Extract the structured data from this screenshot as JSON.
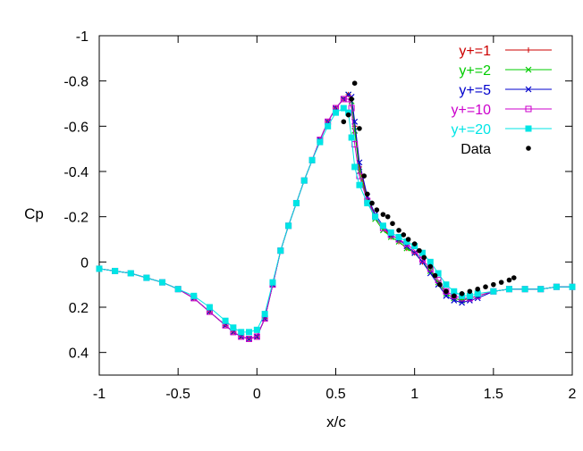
{
  "chart_data": {
    "type": "line",
    "title": "",
    "xlabel": "x/c",
    "ylabel": "Cp",
    "xlim": [
      -1,
      2
    ],
    "ylim": [
      0.5,
      -1
    ],
    "y_inverted": true,
    "grid": false,
    "legend_position": "top-right",
    "x_ticks": [
      "-1",
      "-0.5",
      "0",
      "0.5",
      "1",
      "1.5",
      "2"
    ],
    "y_ticks": [
      "-1",
      "-0.8",
      "-0.6",
      "-0.4",
      "-0.2",
      "0",
      "0.2",
      "0.4"
    ],
    "series": [
      {
        "name": "y+=1",
        "color": "#cc0000",
        "marker": "plus",
        "x": [
          -1.0,
          -0.9,
          -0.8,
          -0.7,
          -0.6,
          -0.5,
          -0.4,
          -0.3,
          -0.2,
          -0.15,
          -0.1,
          -0.05,
          0.0,
          0.05,
          0.1,
          0.15,
          0.2,
          0.25,
          0.3,
          0.35,
          0.4,
          0.45,
          0.5,
          0.55,
          0.58,
          0.6,
          0.62,
          0.65,
          0.7,
          0.75,
          0.8,
          0.85,
          0.9,
          0.95,
          1.0,
          1.05,
          1.1,
          1.15,
          1.2,
          1.25,
          1.3,
          1.35,
          1.4,
          1.5,
          1.6,
          1.7,
          1.8,
          1.9,
          2.0
        ],
        "y": [
          0.03,
          0.04,
          0.05,
          0.07,
          0.09,
          0.12,
          0.16,
          0.22,
          0.28,
          0.31,
          0.33,
          0.34,
          0.33,
          0.25,
          0.1,
          -0.05,
          -0.16,
          -0.26,
          -0.36,
          -0.45,
          -0.54,
          -0.62,
          -0.68,
          -0.72,
          -0.74,
          -0.72,
          -0.6,
          -0.42,
          -0.28,
          -0.2,
          -0.15,
          -0.11,
          -0.09,
          -0.06,
          -0.04,
          0.0,
          0.04,
          0.09,
          0.14,
          0.16,
          0.17,
          0.16,
          0.15,
          0.13,
          0.12,
          0.12,
          0.12,
          0.11,
          0.11
        ]
      },
      {
        "name": "y+=2",
        "color": "#00cc00",
        "marker": "x",
        "x": [
          -1.0,
          -0.9,
          -0.8,
          -0.7,
          -0.6,
          -0.5,
          -0.4,
          -0.3,
          -0.2,
          -0.15,
          -0.1,
          -0.05,
          0.0,
          0.05,
          0.1,
          0.15,
          0.2,
          0.25,
          0.3,
          0.35,
          0.4,
          0.45,
          0.5,
          0.55,
          0.58,
          0.6,
          0.62,
          0.65,
          0.7,
          0.75,
          0.8,
          0.85,
          0.9,
          0.95,
          1.0,
          1.05,
          1.1,
          1.15,
          1.2,
          1.25,
          1.3,
          1.35,
          1.4,
          1.5,
          1.6,
          1.7,
          1.8,
          1.9,
          2.0
        ],
        "y": [
          0.03,
          0.04,
          0.05,
          0.07,
          0.09,
          0.12,
          0.16,
          0.22,
          0.28,
          0.31,
          0.33,
          0.34,
          0.33,
          0.25,
          0.1,
          -0.05,
          -0.16,
          -0.26,
          -0.36,
          -0.45,
          -0.54,
          -0.62,
          -0.68,
          -0.72,
          -0.74,
          -0.71,
          -0.58,
          -0.4,
          -0.27,
          -0.19,
          -0.14,
          -0.11,
          -0.09,
          -0.06,
          -0.04,
          0.0,
          0.04,
          0.09,
          0.14,
          0.16,
          0.17,
          0.16,
          0.15,
          0.13,
          0.12,
          0.12,
          0.12,
          0.11,
          0.11
        ]
      },
      {
        "name": "y+=5",
        "color": "#0000cc",
        "marker": "x",
        "x": [
          -1.0,
          -0.9,
          -0.8,
          -0.7,
          -0.6,
          -0.5,
          -0.4,
          -0.3,
          -0.2,
          -0.15,
          -0.1,
          -0.05,
          0.0,
          0.05,
          0.1,
          0.15,
          0.2,
          0.25,
          0.3,
          0.35,
          0.4,
          0.45,
          0.5,
          0.55,
          0.58,
          0.6,
          0.62,
          0.65,
          0.7,
          0.75,
          0.8,
          0.85,
          0.9,
          0.95,
          1.0,
          1.05,
          1.1,
          1.15,
          1.2,
          1.25,
          1.3,
          1.35,
          1.4,
          1.5,
          1.6,
          1.7,
          1.8,
          1.9,
          2.0
        ],
        "y": [
          0.03,
          0.04,
          0.05,
          0.07,
          0.09,
          0.12,
          0.16,
          0.22,
          0.28,
          0.31,
          0.33,
          0.34,
          0.33,
          0.25,
          0.1,
          -0.05,
          -0.16,
          -0.26,
          -0.36,
          -0.45,
          -0.54,
          -0.62,
          -0.68,
          -0.72,
          -0.74,
          -0.73,
          -0.62,
          -0.44,
          -0.29,
          -0.21,
          -0.16,
          -0.12,
          -0.1,
          -0.07,
          -0.04,
          0.0,
          0.05,
          0.1,
          0.15,
          0.17,
          0.18,
          0.17,
          0.16,
          0.13,
          0.12,
          0.12,
          0.12,
          0.11,
          0.11
        ]
      },
      {
        "name": "y+=10",
        "color": "#cc00cc",
        "marker": "square-open",
        "x": [
          -1.0,
          -0.9,
          -0.8,
          -0.7,
          -0.6,
          -0.5,
          -0.4,
          -0.3,
          -0.2,
          -0.15,
          -0.1,
          -0.05,
          0.0,
          0.05,
          0.1,
          0.15,
          0.2,
          0.25,
          0.3,
          0.35,
          0.4,
          0.45,
          0.5,
          0.55,
          0.58,
          0.6,
          0.62,
          0.65,
          0.7,
          0.75,
          0.8,
          0.85,
          0.9,
          0.95,
          1.0,
          1.05,
          1.1,
          1.15,
          1.2,
          1.25,
          1.3,
          1.35,
          1.4,
          1.5,
          1.6,
          1.7,
          1.8,
          1.9,
          2.0
        ],
        "y": [
          0.03,
          0.04,
          0.05,
          0.07,
          0.09,
          0.12,
          0.16,
          0.22,
          0.28,
          0.31,
          0.33,
          0.34,
          0.33,
          0.25,
          0.1,
          -0.05,
          -0.16,
          -0.26,
          -0.36,
          -0.45,
          -0.54,
          -0.62,
          -0.68,
          -0.72,
          -0.72,
          -0.68,
          -0.52,
          -0.38,
          -0.27,
          -0.2,
          -0.15,
          -0.12,
          -0.1,
          -0.08,
          -0.05,
          -0.01,
          0.03,
          0.08,
          0.13,
          0.15,
          0.16,
          0.16,
          0.15,
          0.13,
          0.12,
          0.12,
          0.12,
          0.11,
          0.11
        ]
      },
      {
        "name": "y+=20",
        "color": "#00e5e5",
        "marker": "square-filled",
        "x": [
          -1.0,
          -0.9,
          -0.8,
          -0.7,
          -0.6,
          -0.5,
          -0.4,
          -0.3,
          -0.2,
          -0.15,
          -0.1,
          -0.05,
          0.0,
          0.05,
          0.1,
          0.15,
          0.2,
          0.25,
          0.3,
          0.35,
          0.4,
          0.45,
          0.5,
          0.55,
          0.58,
          0.6,
          0.62,
          0.65,
          0.7,
          0.75,
          0.8,
          0.85,
          0.9,
          0.95,
          1.0,
          1.05,
          1.1,
          1.15,
          1.2,
          1.25,
          1.3,
          1.35,
          1.4,
          1.5,
          1.6,
          1.7,
          1.8,
          1.9,
          2.0
        ],
        "y": [
          0.03,
          0.04,
          0.05,
          0.07,
          0.09,
          0.12,
          0.15,
          0.2,
          0.26,
          0.29,
          0.31,
          0.31,
          0.3,
          0.23,
          0.09,
          -0.05,
          -0.16,
          -0.26,
          -0.36,
          -0.45,
          -0.53,
          -0.6,
          -0.66,
          -0.68,
          -0.66,
          -0.55,
          -0.42,
          -0.34,
          -0.26,
          -0.2,
          -0.16,
          -0.13,
          -0.11,
          -0.09,
          -0.07,
          -0.04,
          0.0,
          0.05,
          0.1,
          0.13,
          0.15,
          0.15,
          0.14,
          0.13,
          0.12,
          0.12,
          0.12,
          0.11,
          0.11
        ]
      },
      {
        "name": "Data",
        "color": "#000000",
        "marker": "dot",
        "line": false,
        "x": [
          0.55,
          0.58,
          0.6,
          0.62,
          0.65,
          0.68,
          0.7,
          0.73,
          0.76,
          0.8,
          0.83,
          0.86,
          0.9,
          0.93,
          0.96,
          1.0,
          1.03,
          1.06,
          1.1,
          1.13,
          1.16,
          1.2,
          1.25,
          1.3,
          1.35,
          1.4,
          1.45,
          1.5,
          1.55,
          1.6,
          1.63
        ],
        "y": [
          -0.62,
          -0.65,
          -0.72,
          -0.79,
          -0.59,
          -0.38,
          -0.3,
          -0.26,
          -0.23,
          -0.21,
          -0.2,
          -0.17,
          -0.14,
          -0.12,
          -0.1,
          -0.08,
          -0.05,
          -0.02,
          0.02,
          0.06,
          0.1,
          0.13,
          0.15,
          0.14,
          0.13,
          0.12,
          0.11,
          0.1,
          0.09,
          0.08,
          0.07
        ]
      }
    ]
  }
}
